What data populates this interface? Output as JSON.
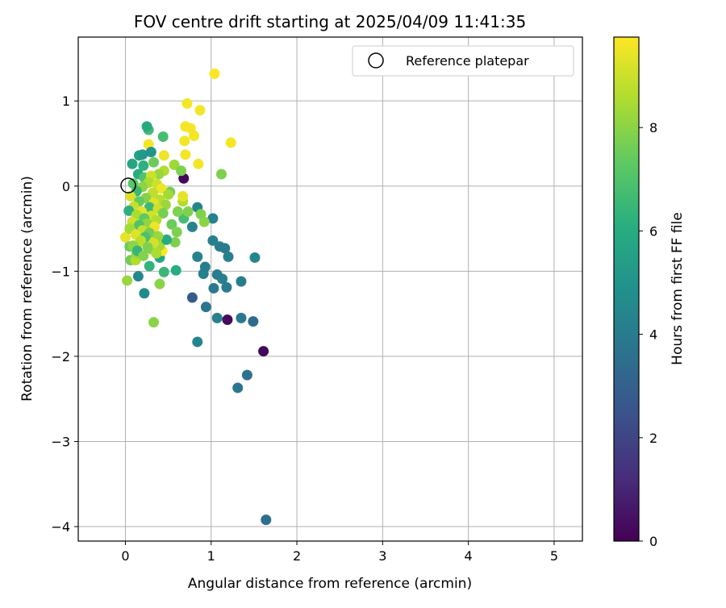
{
  "chart_data": {
    "type": "scatter",
    "title": "FOV centre drift starting at 2025/04/09 11:41:35",
    "xlabel": "Angular distance from reference (arcmin)",
    "ylabel": "Rotation from reference (arcmin)",
    "xlim": [
      -0.55,
      5.33
    ],
    "ylim": [
      -4.17,
      1.75
    ],
    "xticks": [
      0,
      1,
      2,
      3,
      4,
      5
    ],
    "yticks": [
      -4,
      -3,
      -2,
      -1,
      0,
      1
    ],
    "grid": true,
    "legend": {
      "placement": "top-right",
      "entries": [
        "Reference platepar"
      ]
    },
    "reference_point": {
      "x": 0,
      "y": 0
    },
    "colorbar": {
      "label": "Hours from first FF file",
      "min": 0,
      "max": 9.75,
      "ticks": [
        0,
        2,
        4,
        6,
        8
      ],
      "colormap": "viridis"
    },
    "points": [
      {
        "x": 1.64,
        "y": -3.92,
        "c": 3.5
      },
      {
        "x": 1.31,
        "y": -2.37,
        "c": 3.8
      },
      {
        "x": 1.42,
        "y": -2.22,
        "c": 3.6
      },
      {
        "x": 1.61,
        "y": -1.94,
        "c": 0.2
      },
      {
        "x": 0.84,
        "y": -1.83,
        "c": 4.4
      },
      {
        "x": 1.49,
        "y": -1.59,
        "c": 3.4
      },
      {
        "x": 1.35,
        "y": -1.55,
        "c": 3.9
      },
      {
        "x": 1.19,
        "y": -1.57,
        "c": 0.3
      },
      {
        "x": 1.07,
        "y": -1.55,
        "c": 4.2
      },
      {
        "x": 0.94,
        "y": -1.42,
        "c": 3.8
      },
      {
        "x": 0.78,
        "y": -1.31,
        "c": 2.8
      },
      {
        "x": 1.03,
        "y": -1.2,
        "c": 3.9
      },
      {
        "x": 1.18,
        "y": -1.19,
        "c": 4.0
      },
      {
        "x": 1.35,
        "y": -1.12,
        "c": 4.1
      },
      {
        "x": 1.13,
        "y": -1.09,
        "c": 4.2
      },
      {
        "x": 1.07,
        "y": -1.04,
        "c": 4.0
      },
      {
        "x": 0.91,
        "y": -1.03,
        "c": 4.3
      },
      {
        "x": 0.93,
        "y": -0.95,
        "c": 4.1
      },
      {
        "x": 0.84,
        "y": -0.83,
        "c": 4.3
      },
      {
        "x": 1.2,
        "y": -0.83,
        "c": 4.2
      },
      {
        "x": 1.51,
        "y": -0.84,
        "c": 4.4
      },
      {
        "x": 1.1,
        "y": -0.71,
        "c": 4.1
      },
      {
        "x": 1.16,
        "y": -0.73,
        "c": 4.0
      },
      {
        "x": 1.02,
        "y": -0.64,
        "c": 4.2
      },
      {
        "x": 0.78,
        "y": -0.48,
        "c": 4.3
      },
      {
        "x": 1.02,
        "y": -0.38,
        "c": 4.2
      },
      {
        "x": 0.84,
        "y": -0.25,
        "c": 4.4
      },
      {
        "x": 0.68,
        "y": 0.09,
        "c": 0.2
      },
      {
        "x": 0.22,
        "y": -1.26,
        "c": 4.6
      },
      {
        "x": 0.15,
        "y": -1.06,
        "c": 4.5
      },
      {
        "x": 0.33,
        "y": -1.6,
        "c": 8.0
      },
      {
        "x": 0.4,
        "y": -1.15,
        "c": 8.0
      },
      {
        "x": 0.02,
        "y": -1.11,
        "c": 8.2
      },
      {
        "x": 0.45,
        "y": -1.01,
        "c": 6.5
      },
      {
        "x": 0.59,
        "y": -0.99,
        "c": 6.0
      },
      {
        "x": 0.28,
        "y": -0.94,
        "c": 6.3
      },
      {
        "x": 0.4,
        "y": -0.84,
        "c": 5.8
      },
      {
        "x": 0.06,
        "y": -0.87,
        "c": 7.6
      },
      {
        "x": 0.12,
        "y": -0.87,
        "c": 8.6
      },
      {
        "x": 0.13,
        "y": -0.79,
        "c": 8.2
      },
      {
        "x": 0.43,
        "y": -0.76,
        "c": 9.7
      },
      {
        "x": 0.3,
        "y": -0.74,
        "c": 8.0
      },
      {
        "x": 0.05,
        "y": -0.71,
        "c": 7.5
      },
      {
        "x": 0.4,
        "y": -0.7,
        "c": 8.4
      },
      {
        "x": 0.17,
        "y": -0.66,
        "c": 9.2
      },
      {
        "x": 0.58,
        "y": -0.66,
        "c": 7.8
      },
      {
        "x": 0.48,
        "y": -0.63,
        "c": 6.0
      },
      {
        "x": 0.28,
        "y": -0.62,
        "c": 9.6
      },
      {
        "x": 0.0,
        "y": -0.6,
        "c": 9.4
      },
      {
        "x": 0.54,
        "y": -0.45,
        "c": 7.5
      },
      {
        "x": 0.6,
        "y": -0.54,
        "c": 7.8
      },
      {
        "x": 0.68,
        "y": -0.38,
        "c": 6.8
      },
      {
        "x": 0.61,
        "y": -0.3,
        "c": 7.8
      },
      {
        "x": 0.73,
        "y": -0.3,
        "c": 7.8
      },
      {
        "x": 0.88,
        "y": -0.33,
        "c": 7.8
      },
      {
        "x": 0.92,
        "y": -0.42,
        "c": 8.0
      },
      {
        "x": 0.67,
        "y": -0.18,
        "c": 8.6
      },
      {
        "x": 0.67,
        "y": -0.12,
        "c": 9.4
      },
      {
        "x": 0.52,
        "y": -0.07,
        "c": 7.6
      },
      {
        "x": 0.57,
        "y": 0.25,
        "c": 8.3
      },
      {
        "x": 0.65,
        "y": 0.18,
        "c": 7.8
      },
      {
        "x": 0.45,
        "y": 0.18,
        "c": 8.6
      },
      {
        "x": 0.85,
        "y": 0.26,
        "c": 9.6
      },
      {
        "x": 0.7,
        "y": 0.37,
        "c": 9.6
      },
      {
        "x": 0.45,
        "y": 0.36,
        "c": 9.5
      },
      {
        "x": 0.27,
        "y": 0.49,
        "c": 9.6
      },
      {
        "x": 0.69,
        "y": 0.53,
        "c": 9.6
      },
      {
        "x": 0.8,
        "y": 0.59,
        "c": 9.6
      },
      {
        "x": 0.44,
        "y": 0.58,
        "c": 6.8
      },
      {
        "x": 0.27,
        "y": 0.66,
        "c": 6.7
      },
      {
        "x": 0.25,
        "y": 0.7,
        "c": 5.9
      },
      {
        "x": 0.7,
        "y": 0.7,
        "c": 9.6
      },
      {
        "x": 0.76,
        "y": 0.68,
        "c": 9.6
      },
      {
        "x": 0.87,
        "y": 0.89,
        "c": 9.6
      },
      {
        "x": 0.72,
        "y": 0.97,
        "c": 9.6
      },
      {
        "x": 1.04,
        "y": 1.32,
        "c": 9.7
      },
      {
        "x": 1.23,
        "y": 0.51,
        "c": 9.6
      },
      {
        "x": 1.12,
        "y": 0.14,
        "c": 7.8
      },
      {
        "x": 0.16,
        "y": 0.36,
        "c": 5.5
      },
      {
        "x": 0.2,
        "y": 0.37,
        "c": 5.2
      },
      {
        "x": 0.3,
        "y": 0.4,
        "c": 5.0
      },
      {
        "x": 0.08,
        "y": 0.26,
        "c": 5.7
      },
      {
        "x": 0.21,
        "y": 0.24,
        "c": 6.2
      },
      {
        "x": 0.33,
        "y": 0.28,
        "c": 7.5
      },
      {
        "x": 0.15,
        "y": 0.14,
        "c": 6.0
      },
      {
        "x": 0.39,
        "y": 0.14,
        "c": 8.2
      },
      {
        "x": 0.22,
        "y": 0.1,
        "c": 7.0
      },
      {
        "x": 0.3,
        "y": 0.12,
        "c": 9.0
      },
      {
        "x": 0.09,
        "y": 0.03,
        "c": 7.2
      },
      {
        "x": 0.27,
        "y": 0.04,
        "c": 8.5
      },
      {
        "x": 0.37,
        "y": 0.02,
        "c": 9.0
      },
      {
        "x": 0.2,
        "y": -0.01,
        "c": 8.0
      },
      {
        "x": 0.42,
        "y": -0.03,
        "c": 9.5
      },
      {
        "x": 0.13,
        "y": -0.06,
        "c": 6.5
      },
      {
        "x": 0.32,
        "y": -0.08,
        "c": 8.8
      },
      {
        "x": 0.5,
        "y": -0.1,
        "c": 8.4
      },
      {
        "x": 0.06,
        "y": -0.12,
        "c": 9.2
      },
      {
        "x": 0.24,
        "y": -0.14,
        "c": 7.9
      },
      {
        "x": 0.4,
        "y": -0.16,
        "c": 8.7
      },
      {
        "x": 0.16,
        "y": -0.18,
        "c": 7.4
      },
      {
        "x": 0.33,
        "y": -0.2,
        "c": 9.3
      },
      {
        "x": 0.47,
        "y": -0.22,
        "c": 8.2
      },
      {
        "x": 0.1,
        "y": -0.24,
        "c": 8.9
      },
      {
        "x": 0.28,
        "y": -0.25,
        "c": 6.6
      },
      {
        "x": 0.38,
        "y": -0.27,
        "c": 9.0
      },
      {
        "x": 0.04,
        "y": -0.29,
        "c": 6.2
      },
      {
        "x": 0.19,
        "y": -0.3,
        "c": 9.4
      },
      {
        "x": 0.44,
        "y": -0.32,
        "c": 7.7
      },
      {
        "x": 0.13,
        "y": -0.34,
        "c": 8.5
      },
      {
        "x": 0.3,
        "y": -0.35,
        "c": 9.1
      },
      {
        "x": 0.22,
        "y": -0.38,
        "c": 7.3
      },
      {
        "x": 0.36,
        "y": -0.4,
        "c": 8.6
      },
      {
        "x": 0.08,
        "y": -0.42,
        "c": 9.0
      },
      {
        "x": 0.25,
        "y": -0.44,
        "c": 8.1
      },
      {
        "x": 0.16,
        "y": -0.46,
        "c": 7.0
      },
      {
        "x": 0.34,
        "y": -0.48,
        "c": 9.5
      },
      {
        "x": 0.05,
        "y": -0.5,
        "c": 8.4
      },
      {
        "x": 0.2,
        "y": -0.52,
        "c": 8.9
      },
      {
        "x": 0.28,
        "y": -0.55,
        "c": 7.6
      },
      {
        "x": 0.12,
        "y": -0.57,
        "c": 9.3
      },
      {
        "x": 0.38,
        "y": -0.59,
        "c": 8.2
      },
      {
        "x": 0.23,
        "y": -0.6,
        "c": 6.9
      },
      {
        "x": 0.18,
        "y": -0.64,
        "c": 8.7
      },
      {
        "x": 0.33,
        "y": -0.67,
        "c": 9.1
      },
      {
        "x": 0.09,
        "y": -0.7,
        "c": 8.0
      },
      {
        "x": 0.26,
        "y": -0.72,
        "c": 7.8
      },
      {
        "x": 0.14,
        "y": -0.76,
        "c": 6.4
      },
      {
        "x": 0.36,
        "y": -0.79,
        "c": 8.5
      },
      {
        "x": 0.21,
        "y": -0.82,
        "c": 7.9
      }
    ]
  }
}
